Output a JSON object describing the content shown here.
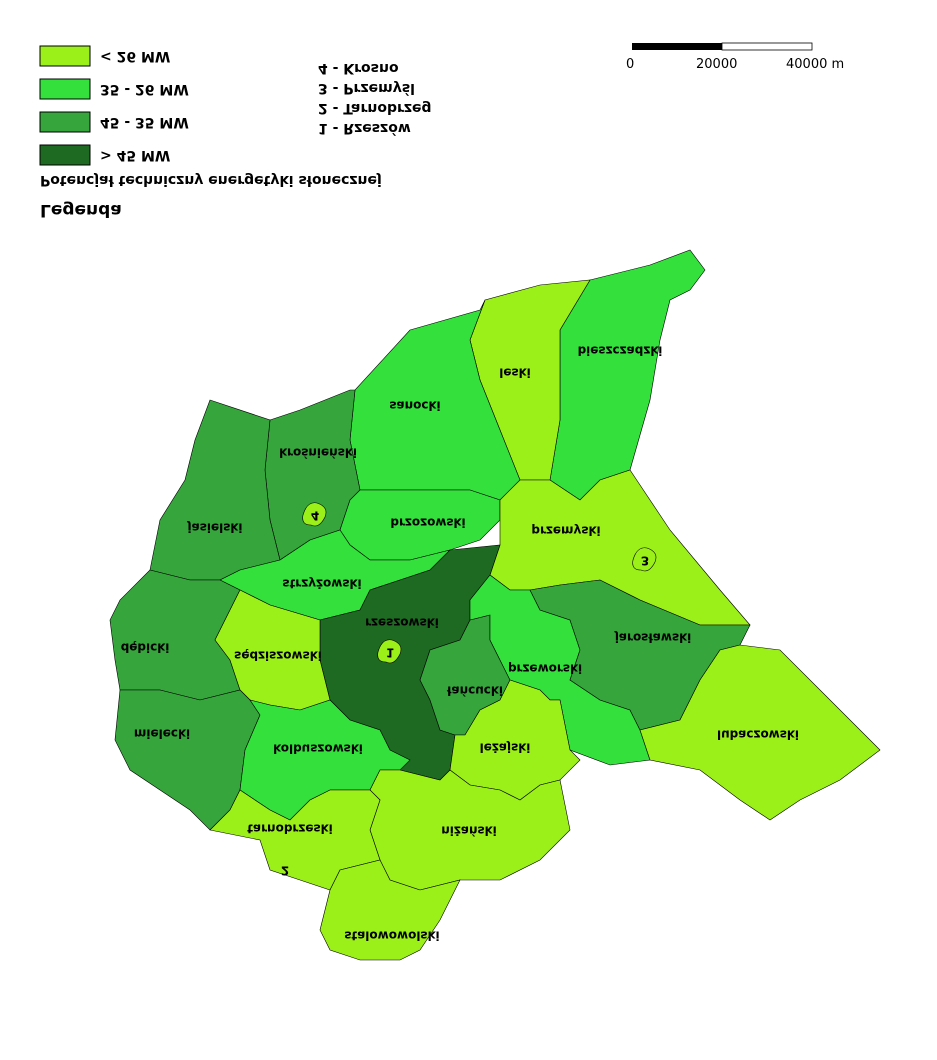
{
  "legend": {
    "title": "Legenda",
    "subtitle": "Potencjał techniczny energetyki słonecznej",
    "items": [
      {
        "label": "< 26 MW",
        "color": "#9cf01a"
      },
      {
        "label": "35 - 26 MW",
        "color": "#33e03c"
      },
      {
        "label": "45 - 35 MW",
        "color": "#35a53c"
      },
      {
        "label": "> 45 MW",
        "color": "#1f6a22"
      }
    ]
  },
  "cities": [
    {
      "map_label": "4",
      "legend": "4 - Krosno"
    },
    {
      "map_label": "3",
      "legend": "3 - Przemyśl"
    },
    {
      "map_label": "2",
      "legend": "2 - Tarnobrzeg"
    },
    {
      "map_label": "1",
      "legend": "1 - Rzeszów"
    }
  ],
  "scale": [
    "0",
    "20000",
    "40000 m"
  ],
  "districts": [
    {
      "name": "bieszczadzki",
      "color": "#33e03c"
    },
    {
      "name": "leski",
      "color": "#9cf01a"
    },
    {
      "name": "sanocki",
      "color": "#33e03c"
    },
    {
      "name": "krośnieński",
      "color": "#35a53c"
    },
    {
      "name": "jasielski",
      "color": "#35a53c"
    },
    {
      "name": "brzozowski",
      "color": "#33e03c"
    },
    {
      "name": "przemyski",
      "color": "#9cf01a"
    },
    {
      "name": "strzyżowski",
      "color": "#33e03c"
    },
    {
      "name": "rzeszowski",
      "color": "#1f6a22"
    },
    {
      "name": "łańcucki",
      "color": "#35a53c"
    },
    {
      "name": "przeworski",
      "color": "#33e03c"
    },
    {
      "name": "jarosławski",
      "color": "#35a53c"
    },
    {
      "name": "lubaczowski",
      "color": "#9cf01a"
    },
    {
      "name": "dębicki",
      "color": "#35a53c"
    },
    {
      "name": "sędziszowski",
      "color": "#9cf01a"
    },
    {
      "name": "mielecki",
      "color": "#35a53c"
    },
    {
      "name": "kolbuszowski",
      "color": "#33e03c"
    },
    {
      "name": "leżajski",
      "color": "#9cf01a"
    },
    {
      "name": "niżański",
      "color": "#9cf01a"
    },
    {
      "name": "tarnobrzeski",
      "color": "#9cf01a"
    },
    {
      "name": "stalowowolski",
      "color": "#9cf01a"
    }
  ]
}
